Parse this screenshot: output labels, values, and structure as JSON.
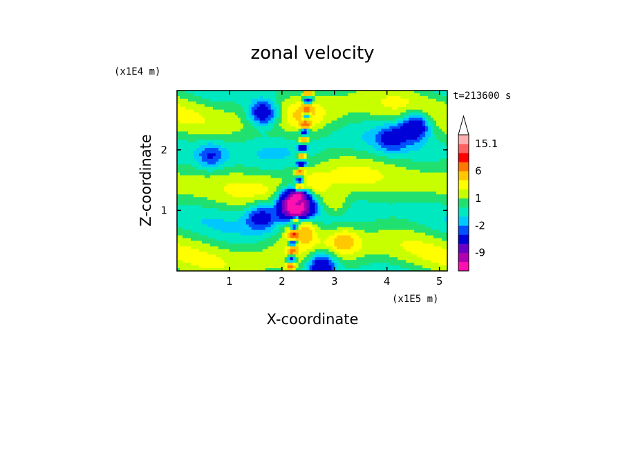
{
  "chart_data": {
    "type": "heatmap",
    "title": "zonal velocity",
    "xlabel": "X-coordinate",
    "ylabel": "Z-coordinate",
    "x_scale_note": "(x1E5 m)",
    "y_scale_note": "(x1E4 m)",
    "time_label": "t=213600 s",
    "xlim": [
      0,
      5.15
    ],
    "ylim": [
      0,
      2.98
    ],
    "x_ticks": [
      "1",
      "2",
      "3",
      "4",
      "5"
    ],
    "x_tick_values": [
      1,
      2,
      3,
      4,
      5
    ],
    "y_ticks": [
      "1",
      "2"
    ],
    "y_tick_values": [
      1,
      2
    ],
    "colorbar": {
      "labels": [
        "15.1",
        "6",
        "1",
        "-2",
        "-9"
      ],
      "label_values": [
        15.1,
        6,
        1,
        -2,
        -9
      ],
      "levels": [
        -15,
        -12,
        -9,
        -6,
        -3,
        -2,
        -1,
        0,
        1,
        2,
        3,
        6,
        9,
        12,
        15.1
      ],
      "colors": [
        "#ff10b0",
        "#b000b0",
        "#6a00c8",
        "#0000d8",
        "#0050ff",
        "#00c8ff",
        "#00e8c0",
        "#20e070",
        "#c8ff00",
        "#ffff00",
        "#ffc800",
        "#ff7800",
        "#ff0000",
        "#ff6060",
        "#ffb0b0"
      ],
      "overflow_color": "#ffffff"
    },
    "features": [
      {
        "x": 2.3,
        "z": 1.2,
        "value": -7
      },
      {
        "x": 2.25,
        "z": 1.05,
        "value": -13
      },
      {
        "x": 2.5,
        "z": 1.35,
        "value": 3
      },
      {
        "x": 2.35,
        "z": 0.7,
        "value": 5
      },
      {
        "x": 2.75,
        "z": 0.1,
        "value": -6
      },
      {
        "x": 1.65,
        "z": 2.6,
        "value": -6
      },
      {
        "x": 4.55,
        "z": 2.4,
        "value": -6
      },
      {
        "x": 0.65,
        "z": 1.9,
        "value": -3
      },
      {
        "x": 4.1,
        "z": 2.2,
        "value": -3
      },
      {
        "x": 1.6,
        "z": 0.9,
        "value": -4
      },
      {
        "x": 2.45,
        "z": 2.55,
        "value": 1.5
      },
      {
        "x": 3.2,
        "z": 0.5,
        "value": 2.5
      },
      {
        "x": 3.0,
        "z": 1.1,
        "value": 2.5
      }
    ]
  }
}
